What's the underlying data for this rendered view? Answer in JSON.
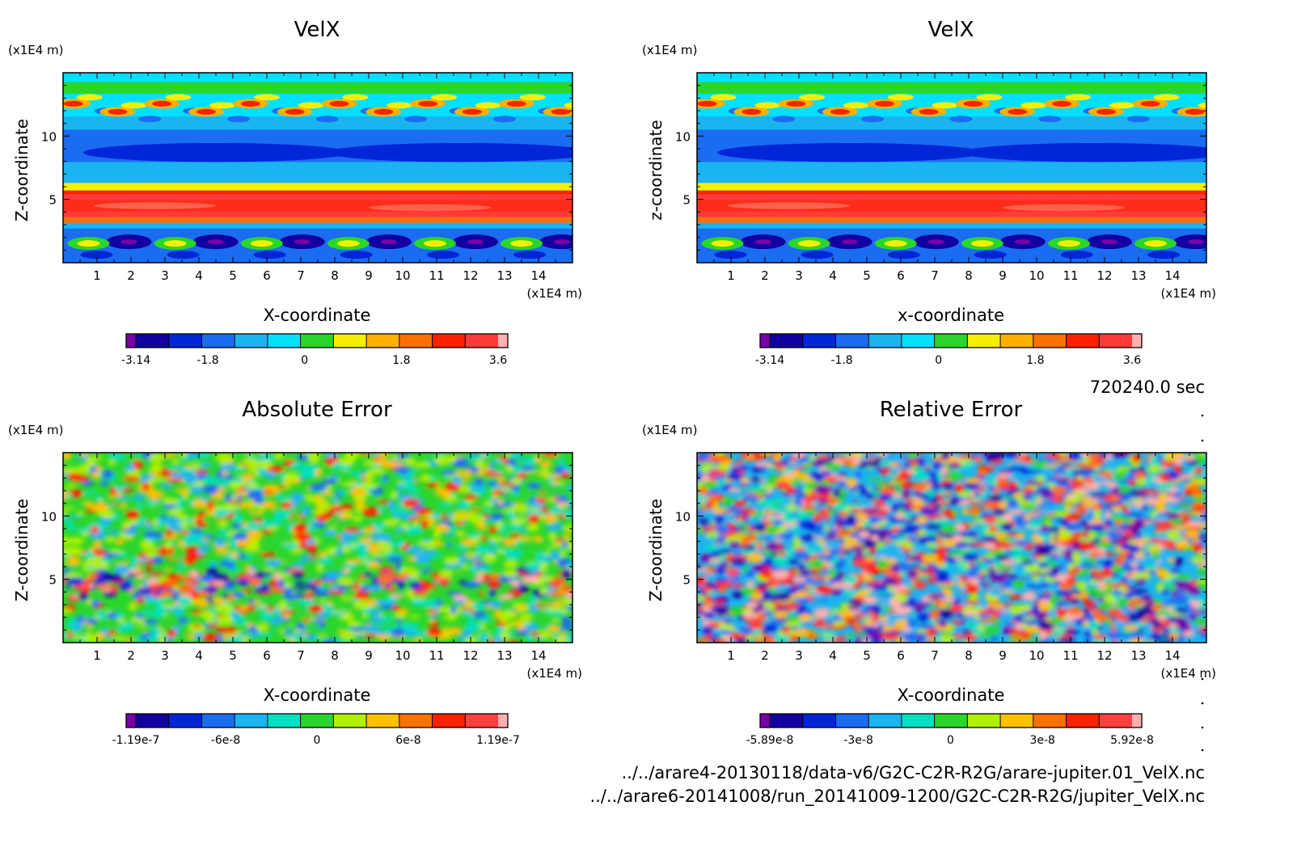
{
  "footer": {
    "time": "720240.0 sec",
    "file1": "../../arare4-20130118/data-v6/G2C-C2R-R2G/arare-jupiter.01_VelX.nc",
    "file2": "../../arare6-20141008/run_20141009-1200/G2C-C2R-R2G/jupiter_VelX.nc"
  },
  "chart_data": [
    {
      "type": "heatmap",
      "title": "VelX",
      "xlabel": "X-coordinate",
      "ylabel": "Z-coordinate",
      "x_unit": "(x1E4 m)",
      "y_unit": "(x1E4 m)",
      "xlim": [
        0,
        15
      ],
      "ylim": [
        0,
        15
      ],
      "x_ticks": [
        "1",
        "2",
        "3",
        "4",
        "5",
        "6",
        "7",
        "8",
        "9",
        "10",
        "11",
        "12",
        "13",
        "14"
      ],
      "y_ticks": [
        "5",
        "10"
      ],
      "colorbar": {
        "min": -3.14,
        "max": 3.6,
        "labels": [
          "-3.14",
          "-1.8",
          "0",
          "1.8",
          "3.6"
        ],
        "colors": [
          "#7a00a8",
          "#1200a0",
          "#0026d8",
          "#1a6cf0",
          "#1ab4f0",
          "#00e0ff",
          "#2ad62a",
          "#f6f000",
          "#ffb000",
          "#ff7000",
          "#ff2000",
          "#ff3a3a",
          "#ffb0b0"
        ]
      },
      "pattern": "zonal-jets"
    },
    {
      "type": "heatmap",
      "title": "VelX",
      "xlabel": "x-coordinate",
      "ylabel": "z-coordinate",
      "x_unit": "(x1E4 m)",
      "y_unit": "(x1E4 m)",
      "xlim": [
        0,
        15
      ],
      "ylim": [
        0,
        15
      ],
      "x_ticks": [
        "1",
        "2",
        "3",
        "4",
        "5",
        "6",
        "7",
        "8",
        "9",
        "10",
        "11",
        "12",
        "13",
        "14"
      ],
      "y_ticks": [
        "5",
        "10"
      ],
      "colorbar": {
        "min": -3.14,
        "max": 3.6,
        "labels": [
          "-3.14",
          "-1.8",
          "0",
          "1.8",
          "3.6"
        ],
        "colors": [
          "#7a00a8",
          "#1200a0",
          "#0026d8",
          "#1a6cf0",
          "#1ab4f0",
          "#00e0ff",
          "#2ad62a",
          "#f6f000",
          "#ffb000",
          "#ff7000",
          "#ff2000",
          "#ff3a3a",
          "#ffb0b0"
        ]
      },
      "pattern": "zonal-jets"
    },
    {
      "type": "heatmap",
      "title": "Absolute Error",
      "xlabel": "X-coordinate",
      "ylabel": "Z-coordinate",
      "x_unit": "(x1E4 m)",
      "y_unit": "(x1E4 m)",
      "xlim": [
        0,
        15
      ],
      "ylim": [
        0,
        15
      ],
      "x_ticks": [
        "1",
        "2",
        "3",
        "4",
        "5",
        "6",
        "7",
        "8",
        "9",
        "10",
        "11",
        "12",
        "13",
        "14"
      ],
      "y_ticks": [
        "5",
        "10"
      ],
      "colorbar": {
        "min": -1.19e-07,
        "max": 1.19e-07,
        "labels": [
          "-1.19e-7",
          "-6e-8",
          "0",
          "6e-8",
          "1.19e-7"
        ],
        "colors": [
          "#7a00a8",
          "#1200a0",
          "#0026d8",
          "#1a6cf0",
          "#1ab4f0",
          "#00e0c0",
          "#2ad62a",
          "#b0f000",
          "#ffc000",
          "#ff7000",
          "#ff2000",
          "#ff4040",
          "#ffb0b0"
        ]
      },
      "pattern": "noise-low"
    },
    {
      "type": "heatmap",
      "title": "Relative Error",
      "xlabel": "X-coordinate",
      "ylabel": "Z-coordinate",
      "x_unit": "(x1E4 m)",
      "y_unit": "(x1E4 m)",
      "xlim": [
        0,
        15
      ],
      "ylim": [
        0,
        15
      ],
      "x_ticks": [
        "1",
        "2",
        "3",
        "4",
        "5",
        "6",
        "7",
        "8",
        "9",
        "10",
        "11",
        "12",
        "13",
        "14"
      ],
      "y_ticks": [
        "5",
        "10"
      ],
      "colorbar": {
        "min": -5.89e-08,
        "max": 5.92e-08,
        "labels": [
          "-5.89e-8",
          "-3e-8",
          "0",
          "3e-8",
          "5.92e-8"
        ],
        "colors": [
          "#7a00a8",
          "#1200a0",
          "#0026d8",
          "#1a6cf0",
          "#1ab4f0",
          "#00e0c0",
          "#2ad62a",
          "#b0f000",
          "#ffc000",
          "#ff7000",
          "#ff2000",
          "#ff4040",
          "#ffb0b0"
        ]
      },
      "pattern": "noise-full"
    }
  ]
}
